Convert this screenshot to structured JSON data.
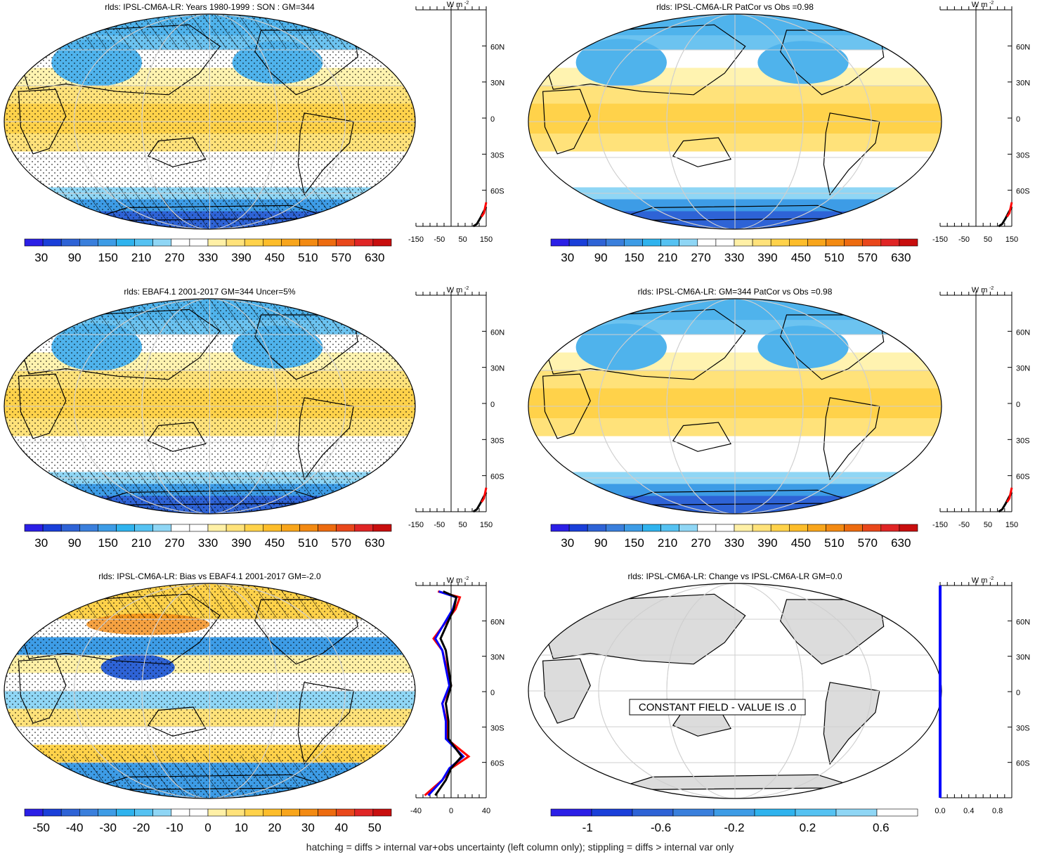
{
  "footnote": "hatching = diffs > internal var+obs uncertainty (left column only); stippling = diffs > internal var only",
  "lat_ticks": [
    "60N",
    "30N",
    "0",
    "30S",
    "60S"
  ],
  "units": "W m",
  "units_sup": "-2",
  "colors": {
    "abs_scale": [
      "#2b1fe6",
      "#1a3fd9",
      "#2e63d6",
      "#3a7fdc",
      "#3d9ce6",
      "#2fb3ee",
      "#55c2f2",
      "#8fd6f5",
      "#ffffff",
      "#ffffff",
      "#fff0a6",
      "#ffe27a",
      "#ffd24a",
      "#fdbd2a",
      "#f8a51b",
      "#f38a12",
      "#ed6b0f",
      "#e9471b",
      "#e02525",
      "#c80e0e"
    ],
    "diff_scale": [
      "#2b1fe6",
      "#1a3fd9",
      "#2e63d6",
      "#3a7fdc",
      "#3d9ce6",
      "#2fb3ee",
      "#55c2f2",
      "#8fd6f5",
      "#ffffff",
      "#ffffff",
      "#fff0a6",
      "#ffe27a",
      "#ffd24a",
      "#fdbd2a",
      "#f8a51b",
      "#f38a12",
      "#ed6b0f",
      "#e9471b",
      "#e02525",
      "#c80e0e"
    ],
    "change_scale": [
      "#2b1fe6",
      "#1a3fd9",
      "#2e63d6",
      "#3a7fdc",
      "#3d9ce6",
      "#2fb3ee",
      "#55c2f2",
      "#8fd6f5",
      "#ffffff"
    ],
    "land_gray": "#dcdcdc",
    "zonal_model": "#000000",
    "zonal_obs": "#ff0000",
    "zonal_obs2": "#0000ff"
  },
  "panels": [
    {
      "title": "rlds: IPSL-CM6A-LR: Years 1980-1999 : SON : GM=344",
      "map_style": "abs",
      "hatching": true,
      "stippling": true,
      "colorbar_labels": [
        "30",
        "90",
        "150",
        "210",
        "270",
        "330",
        "390",
        "450",
        "510",
        "570",
        "630"
      ],
      "colorbar_scale": "abs",
      "zonal_ticks": [
        "-150",
        "-50",
        "50",
        "150"
      ],
      "zonal_range": [
        -150,
        150
      ],
      "zonal_lines": "abs"
    },
    {
      "title": "rlds: IPSL-CM6A-LR PatCor vs Obs =0.98",
      "map_style": "abs",
      "hatching": false,
      "stippling": false,
      "colorbar_labels": [
        "30",
        "90",
        "150",
        "210",
        "270",
        "330",
        "390",
        "450",
        "510",
        "570",
        "630"
      ],
      "colorbar_scale": "abs",
      "zonal_ticks": [
        "-150",
        "-50",
        "50",
        "150"
      ],
      "zonal_range": [
        -150,
        150
      ],
      "zonal_lines": "abs"
    },
    {
      "title": "rlds: EBAF4.1 2001-2017 GM=344 Uncer=5%",
      "map_style": "abs",
      "hatching": true,
      "stippling": true,
      "colorbar_labels": [
        "30",
        "90",
        "150",
        "210",
        "270",
        "330",
        "390",
        "450",
        "510",
        "570",
        "630"
      ],
      "colorbar_scale": "abs",
      "zonal_ticks": [
        "-150",
        "-50",
        "50",
        "150"
      ],
      "zonal_range": [
        -150,
        150
      ],
      "zonal_lines": "abs"
    },
    {
      "title": "rlds: IPSL-CM6A-LR: GM=344 PatCor vs Obs =0.98",
      "map_style": "abs",
      "hatching": false,
      "stippling": false,
      "colorbar_labels": [
        "30",
        "90",
        "150",
        "210",
        "270",
        "330",
        "390",
        "450",
        "510",
        "570",
        "630"
      ],
      "colorbar_scale": "abs",
      "zonal_ticks": [
        "-150",
        "-50",
        "50",
        "150"
      ],
      "zonal_range": [
        -150,
        150
      ],
      "zonal_lines": "abs"
    },
    {
      "title": "rlds: IPSL-CM6A-LR: Bias vs EBAF4.1 2001-2017  GM=-2.0",
      "map_style": "bias",
      "hatching": true,
      "stippling": true,
      "colorbar_labels": [
        "-50",
        "-40",
        "-30",
        "-20",
        "-10",
        "0",
        "10",
        "20",
        "30",
        "40",
        "50"
      ],
      "colorbar_scale": "diff",
      "zonal_ticks": [
        "-40",
        "0",
        "40"
      ],
      "zonal_range": [
        -40,
        40
      ],
      "zonal_lines": "bias"
    },
    {
      "title": "rlds: IPSL-CM6A-LR: Change vs IPSL-CM6A-LR GM=0.0",
      "map_style": "const",
      "hatching": false,
      "stippling": false,
      "constant_label": "CONSTANT FIELD - VALUE IS .0",
      "colorbar_labels": [
        "-1",
        "-0.6",
        "-0.2",
        "0.2",
        "0.6"
      ],
      "colorbar_scale": "change",
      "zonal_ticks": [
        "0.0",
        "0.4",
        "0.8"
      ],
      "zonal_range": [
        0,
        1
      ],
      "zonal_lines": "const"
    }
  ]
}
